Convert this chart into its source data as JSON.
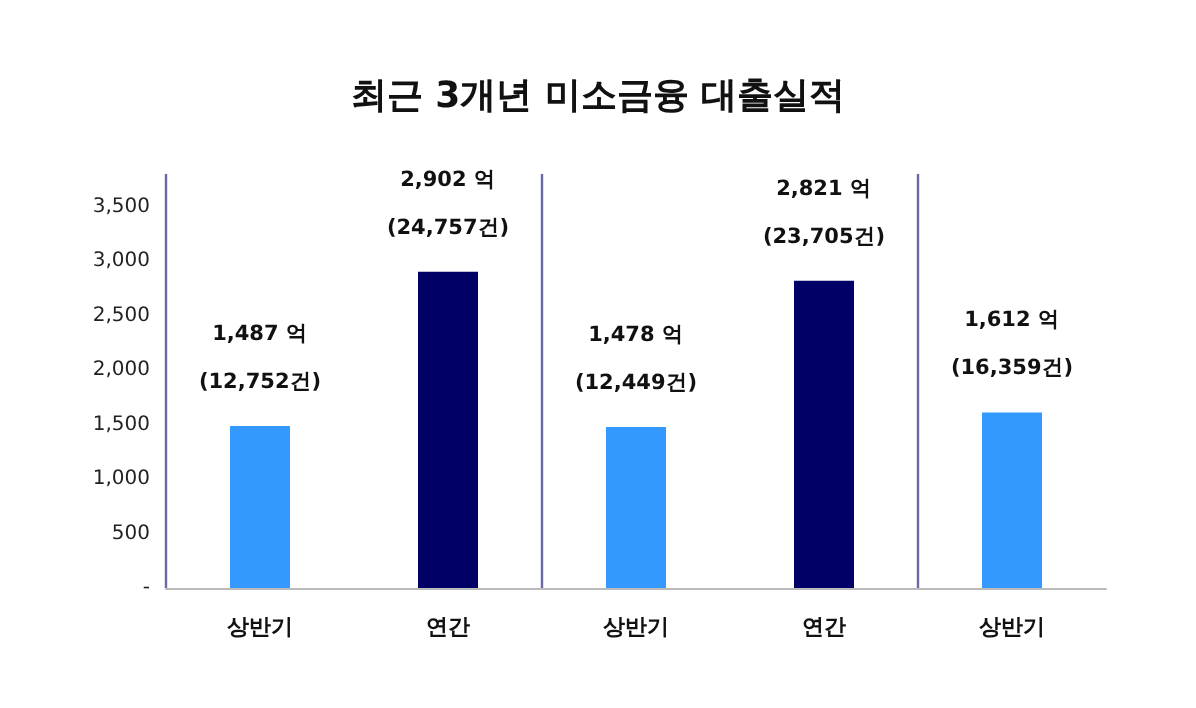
{
  "chart_data": {
    "type": "bar",
    "title": "최근 3개년 미소금융 대출실적",
    "categories": [
      "상반기",
      "연간",
      "상반기",
      "연간",
      "상반기"
    ],
    "values": [
      1487,
      2902,
      1478,
      2821,
      1612
    ],
    "colors": [
      "#3399ff",
      "#000066",
      "#3399ff",
      "#000066",
      "#3399ff"
    ],
    "value_labels": [
      "1,487 억\n(12,752건)",
      "2,902 억\n(24,757건)",
      "1,478 억\n(12,449건)",
      "2,821 억\n(23,705건)",
      "1,612 억\n(16,359건)"
    ],
    "ylim": [
      0,
      3800
    ],
    "yticks": [
      {
        "value": 0,
        "label": "-"
      },
      500,
      {
        "value": 1000,
        "label": "1,000"
      },
      {
        "value": 1500,
        "label": "1,500"
      },
      {
        "value": 2000,
        "label": "2,000"
      },
      {
        "value": 2500,
        "label": "2,500"
      },
      {
        "value": 3000,
        "label": "3,000"
      },
      {
        "value": 3500,
        "label": "3,500"
      }
    ],
    "grid": false
  }
}
